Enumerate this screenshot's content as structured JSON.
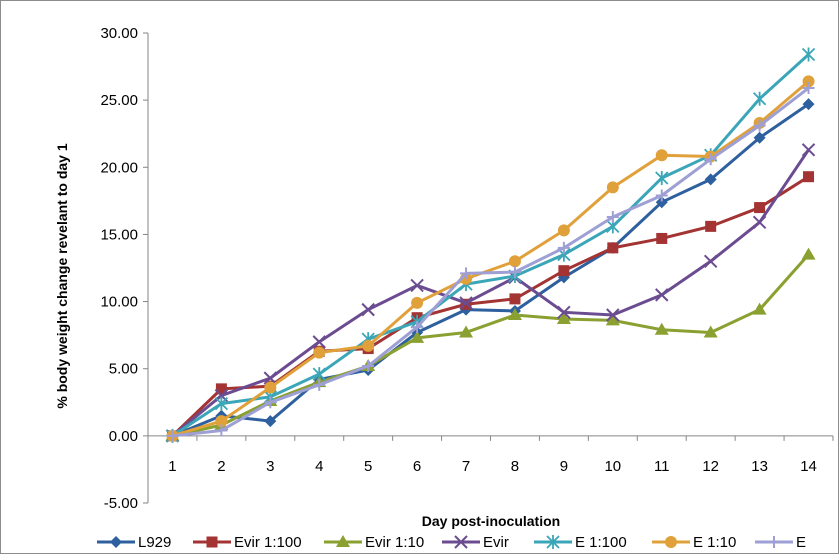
{
  "chart_data": {
    "type": "line",
    "title": "",
    "xlabel": "Day post-inoculation",
    "ylabel": "% body weight change revelant to day 1",
    "categories": [
      "1",
      "2",
      "3",
      "4",
      "5",
      "6",
      "7",
      "8",
      "9",
      "10",
      "11",
      "12",
      "13",
      "14"
    ],
    "ylim": [
      -5,
      30
    ],
    "yticks": [
      "-5.00",
      "0.00",
      "5.00",
      "10.00",
      "15.00",
      "20.00",
      "25.00",
      "30.00"
    ],
    "grid": false,
    "legend_position": "bottom",
    "series": [
      {
        "name": "L929",
        "color": "#2e5f9e",
        "marker": "diamond",
        "values": [
          0,
          1.5,
          1.1,
          4.2,
          4.9,
          7.7,
          9.4,
          9.3,
          11.8,
          14.0,
          17.4,
          19.1,
          22.2,
          24.7
        ]
      },
      {
        "name": "Evir 1:100",
        "color": "#a33433",
        "marker": "square",
        "values": [
          0,
          3.5,
          3.7,
          6.3,
          6.5,
          8.8,
          9.8,
          10.2,
          12.3,
          14.0,
          14.7,
          15.6,
          17.0,
          19.3
        ]
      },
      {
        "name": "Evir 1:10",
        "color": "#8aa031",
        "marker": "triangle",
        "values": [
          0,
          0.8,
          2.6,
          4.0,
          5.2,
          7.3,
          7.7,
          9.0,
          8.7,
          8.6,
          7.9,
          7.7,
          9.4,
          13.5
        ]
      },
      {
        "name": "Evir",
        "color": "#6b4c91",
        "marker": "x",
        "values": [
          0,
          3.0,
          4.3,
          7.0,
          9.4,
          11.2,
          9.9,
          11.8,
          9.2,
          9.0,
          10.5,
          13.0,
          15.9,
          21.3
        ]
      },
      {
        "name": "E 1:100",
        "color": "#3aa6b7",
        "marker": "star",
        "values": [
          0,
          2.4,
          2.9,
          4.6,
          7.2,
          8.5,
          11.3,
          11.9,
          13.5,
          15.6,
          19.2,
          20.9,
          25.1,
          28.4
        ]
      },
      {
        "name": "E 1:10",
        "color": "#e0a03a",
        "marker": "circle",
        "values": [
          0,
          1.1,
          3.6,
          6.2,
          6.7,
          9.9,
          11.7,
          13.0,
          15.3,
          18.5,
          20.9,
          20.8,
          23.3,
          26.4
        ]
      },
      {
        "name": "E",
        "color": "#9e9fd4",
        "marker": "plus",
        "values": [
          0,
          0.4,
          2.5,
          3.8,
          5.2,
          8.1,
          12.1,
          12.2,
          14.0,
          16.3,
          17.9,
          20.6,
          23.1,
          25.9
        ]
      }
    ]
  }
}
